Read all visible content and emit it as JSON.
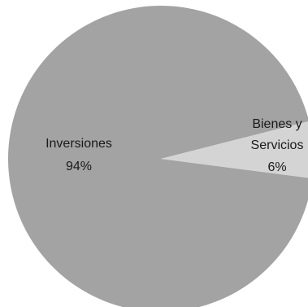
{
  "chart_data": {
    "type": "pie",
    "title": "",
    "slices": [
      {
        "name": "Inversiones",
        "value": 94,
        "label": "94%",
        "color": "#a3a3a3"
      },
      {
        "name": "Bienes y Servicios",
        "name_lines": [
          "Bienes y",
          "Servicios"
        ],
        "value": 6,
        "label": "6%",
        "color": "#d4d4d4"
      }
    ],
    "legend": "none",
    "data_labels": "inside"
  }
}
